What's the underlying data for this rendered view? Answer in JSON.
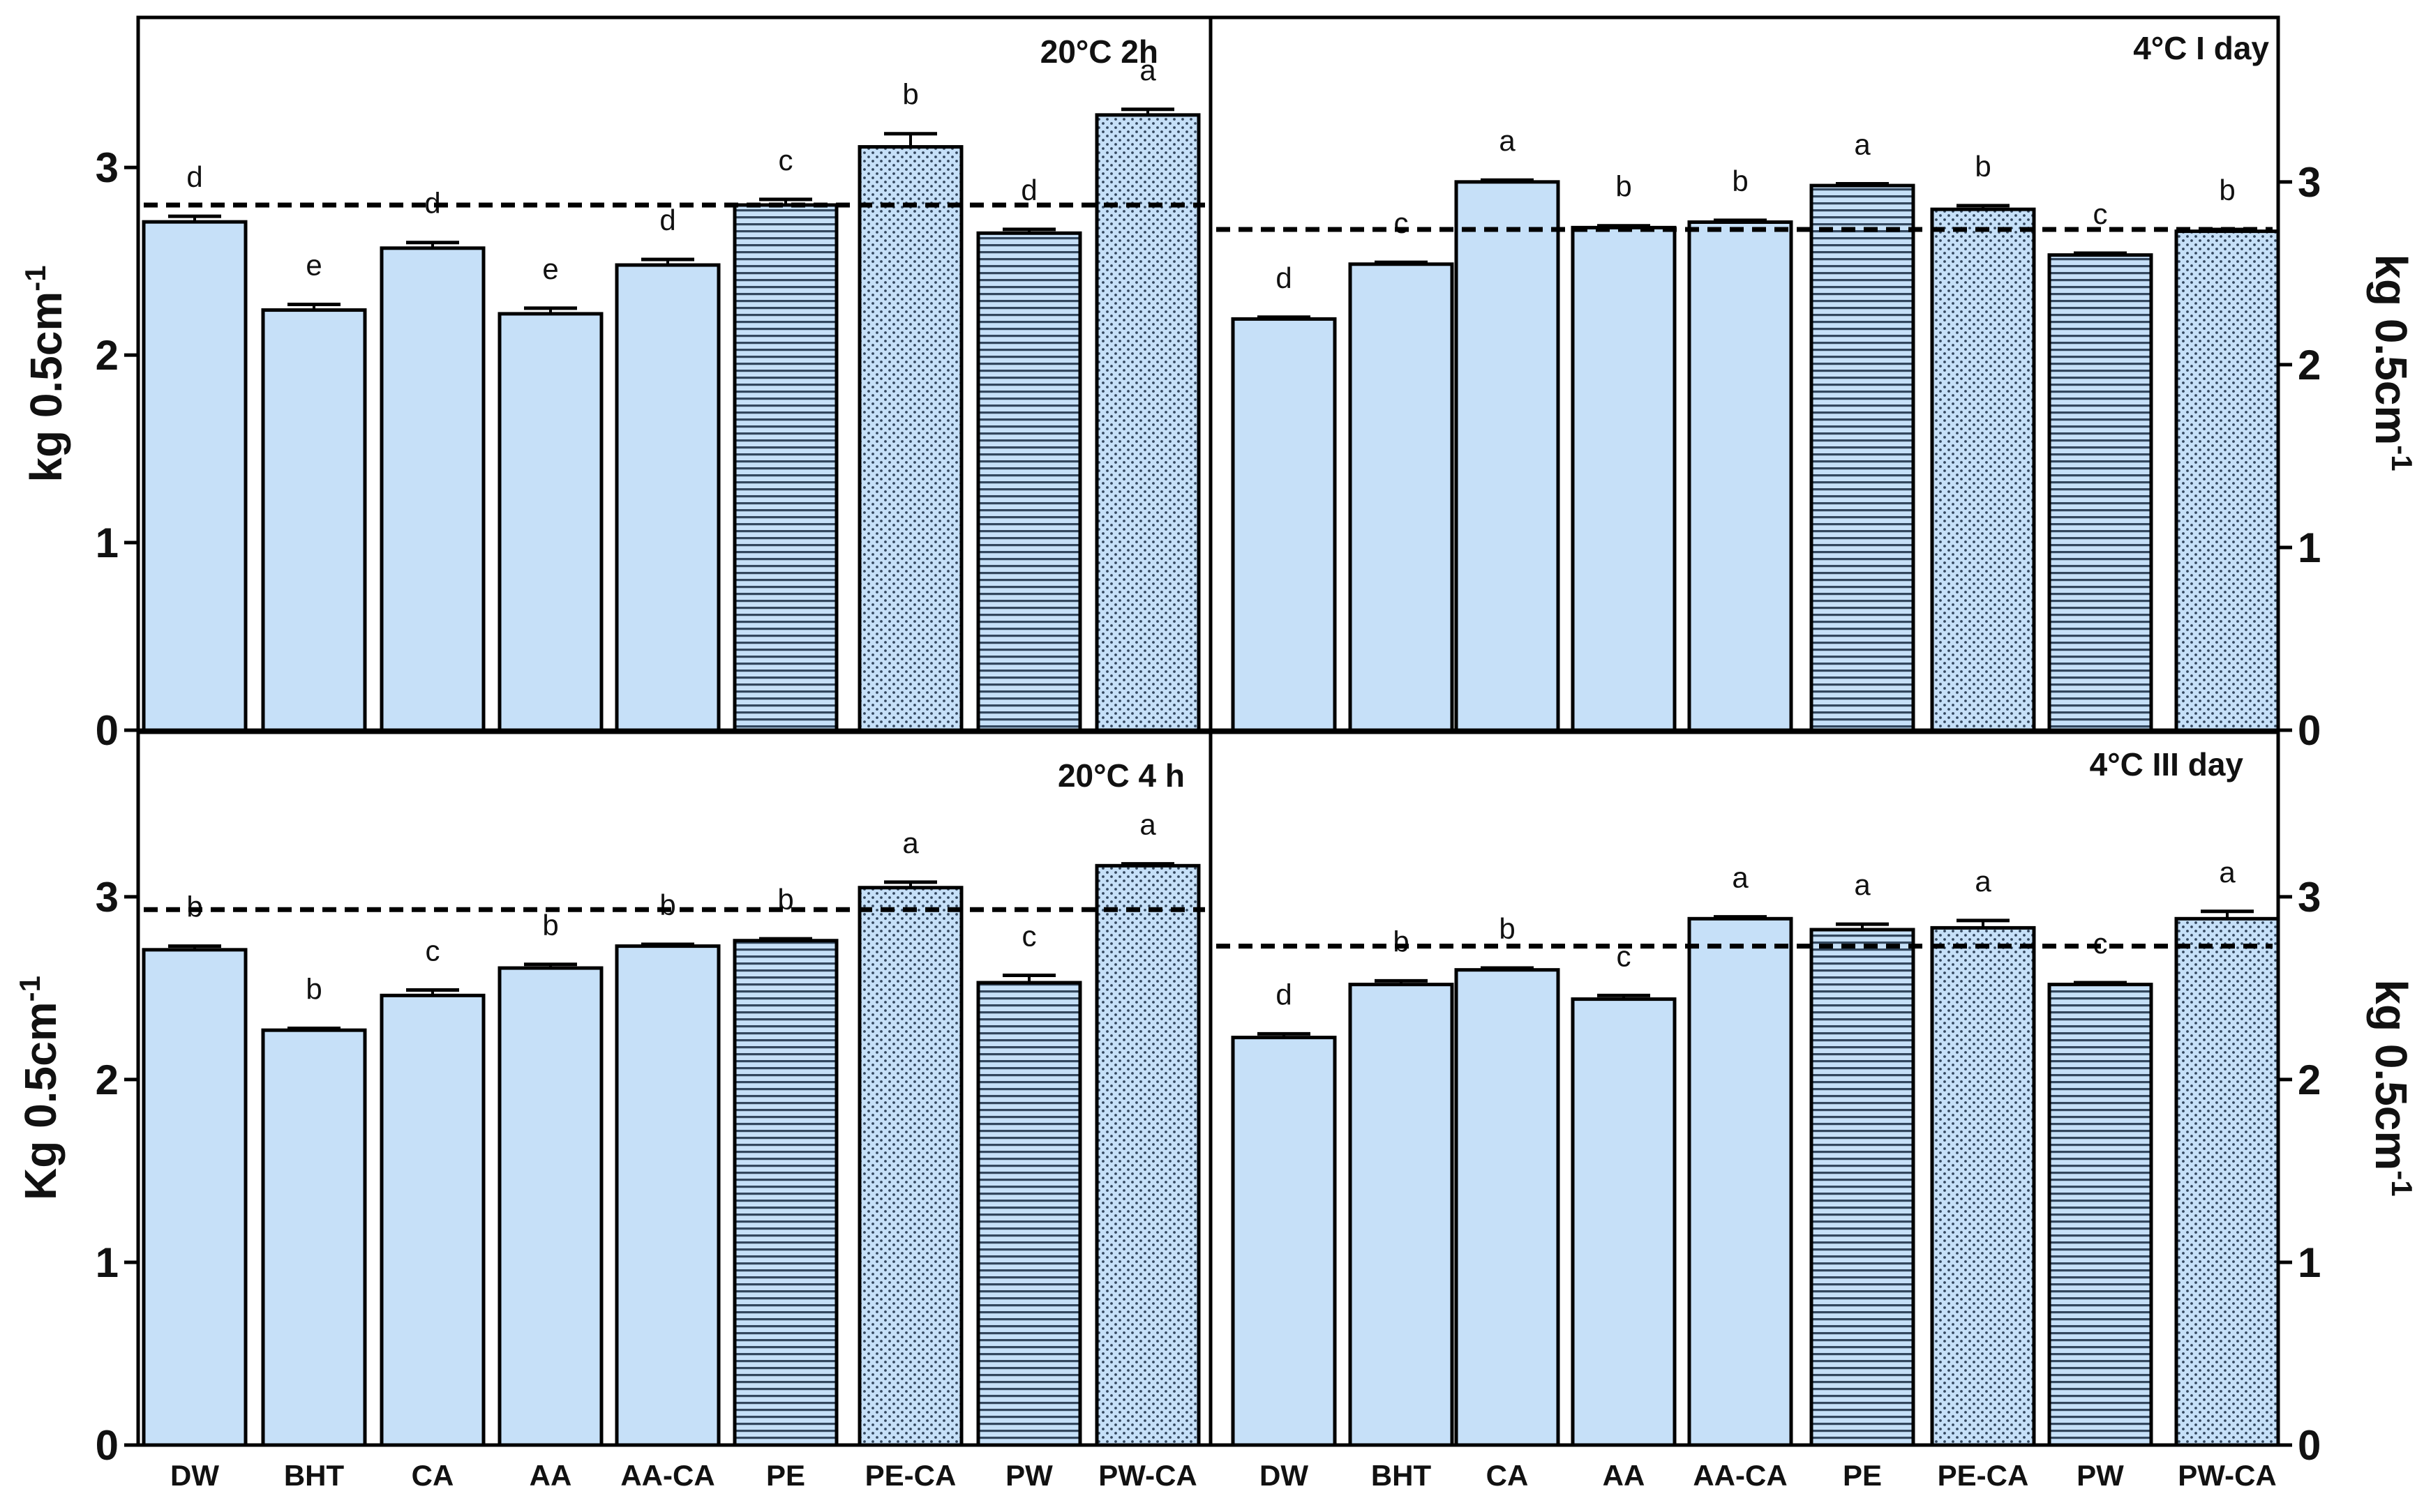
{
  "page": {
    "background": "#ffffff"
  },
  "styles": {
    "fill_light": "#c6e0f8",
    "pattern_ink": "#33475e",
    "bar_stroke": "#000000"
  },
  "chart_data": [
    {
      "type": "bar",
      "title": "20°C 2h",
      "ylabel": "kg 0.5cm-1",
      "ylabel_parts": [
        "kg 0.5cm",
        "-1"
      ],
      "ylim": [
        0,
        3.8
      ],
      "yticks": [
        0,
        1,
        2,
        3
      ],
      "y_axis_side": "left",
      "reference_line": 2.8,
      "categories": [
        "DW",
        "BHT",
        "CA",
        "AA",
        "AA-CA",
        "PE",
        "PE-CA",
        "PW",
        "PW-CA"
      ],
      "values": [
        2.71,
        2.24,
        2.57,
        2.22,
        2.48,
        2.8,
        3.11,
        2.65,
        3.28
      ],
      "errors": [
        0.03,
        0.03,
        0.03,
        0.03,
        0.03,
        0.03,
        0.07,
        0.02,
        0.03
      ],
      "letters": [
        "d",
        "e",
        "d",
        "e",
        "d",
        "c",
        "b",
        "d",
        "a"
      ],
      "patterns": [
        "solid",
        "solid",
        "solid",
        "solid",
        "solid",
        "hlines",
        "dots",
        "hlines",
        "dots"
      ]
    },
    {
      "type": "bar",
      "title": "4°C I day",
      "ylabel": "kg 0.5cm-1",
      "ylabel_parts": [
        "kg 0.5cm",
        "-1"
      ],
      "ylim": [
        0,
        3.9
      ],
      "yticks": [
        0,
        1,
        2,
        3
      ],
      "y_axis_side": "right",
      "reference_line": 2.74,
      "categories": [
        "DW",
        "BHT",
        "CA",
        "AA",
        "AA-CA",
        "PE",
        "PE-CA",
        "PW",
        "PW-CA"
      ],
      "values": [
        2.25,
        2.55,
        3.0,
        2.75,
        2.78,
        2.98,
        2.85,
        2.6,
        2.73
      ],
      "errors": [
        0.01,
        0.01,
        0.01,
        0.01,
        0.01,
        0.01,
        0.02,
        0.01,
        0.01
      ],
      "letters": [
        "d",
        "c",
        "a",
        "b",
        "b",
        "a",
        "b",
        "c",
        "b"
      ],
      "patterns": [
        "solid",
        "solid",
        "solid",
        "solid",
        "solid",
        "hlines",
        "dots",
        "hlines",
        "dots"
      ]
    },
    {
      "type": "bar",
      "title": "20°C 4 h",
      "ylabel": "Kg 0.5cm-1",
      "ylabel_parts": [
        "Kg 0.5cm",
        "-1"
      ],
      "ylim": [
        0,
        3.9
      ],
      "yticks": [
        0,
        1,
        2,
        3
      ],
      "y_axis_side": "left",
      "reference_line": 2.93,
      "categories": [
        "DW",
        "BHT",
        "CA",
        "AA",
        "AA-CA",
        "PE",
        "PE-CA",
        "PW",
        "PW-CA"
      ],
      "values": [
        2.71,
        2.27,
        2.46,
        2.61,
        2.73,
        2.76,
        3.05,
        2.53,
        3.17
      ],
      "errors": [
        0.02,
        0.01,
        0.03,
        0.02,
        0.01,
        0.01,
        0.03,
        0.04,
        0.01
      ],
      "letters": [
        "b",
        "b",
        "c",
        "b",
        "b",
        "b",
        "a",
        "c",
        "a"
      ],
      "patterns": [
        "solid",
        "solid",
        "solid",
        "solid",
        "solid",
        "hlines",
        "dots",
        "hlines",
        "dots"
      ]
    },
    {
      "type": "bar",
      "title": "4°C III day",
      "ylabel": "kg 0.5cm-1",
      "ylabel_parts": [
        "kg 0.5cm",
        "-1"
      ],
      "ylim": [
        0,
        3.9
      ],
      "yticks": [
        0,
        1,
        2,
        3
      ],
      "y_axis_side": "right",
      "reference_line": 2.73,
      "categories": [
        "DW",
        "BHT",
        "CA",
        "AA",
        "AA-CA",
        "PE",
        "PE-CA",
        "PW",
        "PW-CA"
      ],
      "values": [
        2.23,
        2.52,
        2.6,
        2.44,
        2.88,
        2.82,
        2.83,
        2.52,
        2.88
      ],
      "errors": [
        0.02,
        0.02,
        0.01,
        0.02,
        0.01,
        0.03,
        0.04,
        0.01,
        0.04
      ],
      "letters": [
        "d",
        "b",
        "b",
        "c",
        "a",
        "a",
        "a",
        "c",
        "a"
      ],
      "patterns": [
        "solid",
        "solid",
        "solid",
        "solid",
        "solid",
        "hlines",
        "dots",
        "hlines",
        "dots"
      ]
    }
  ]
}
